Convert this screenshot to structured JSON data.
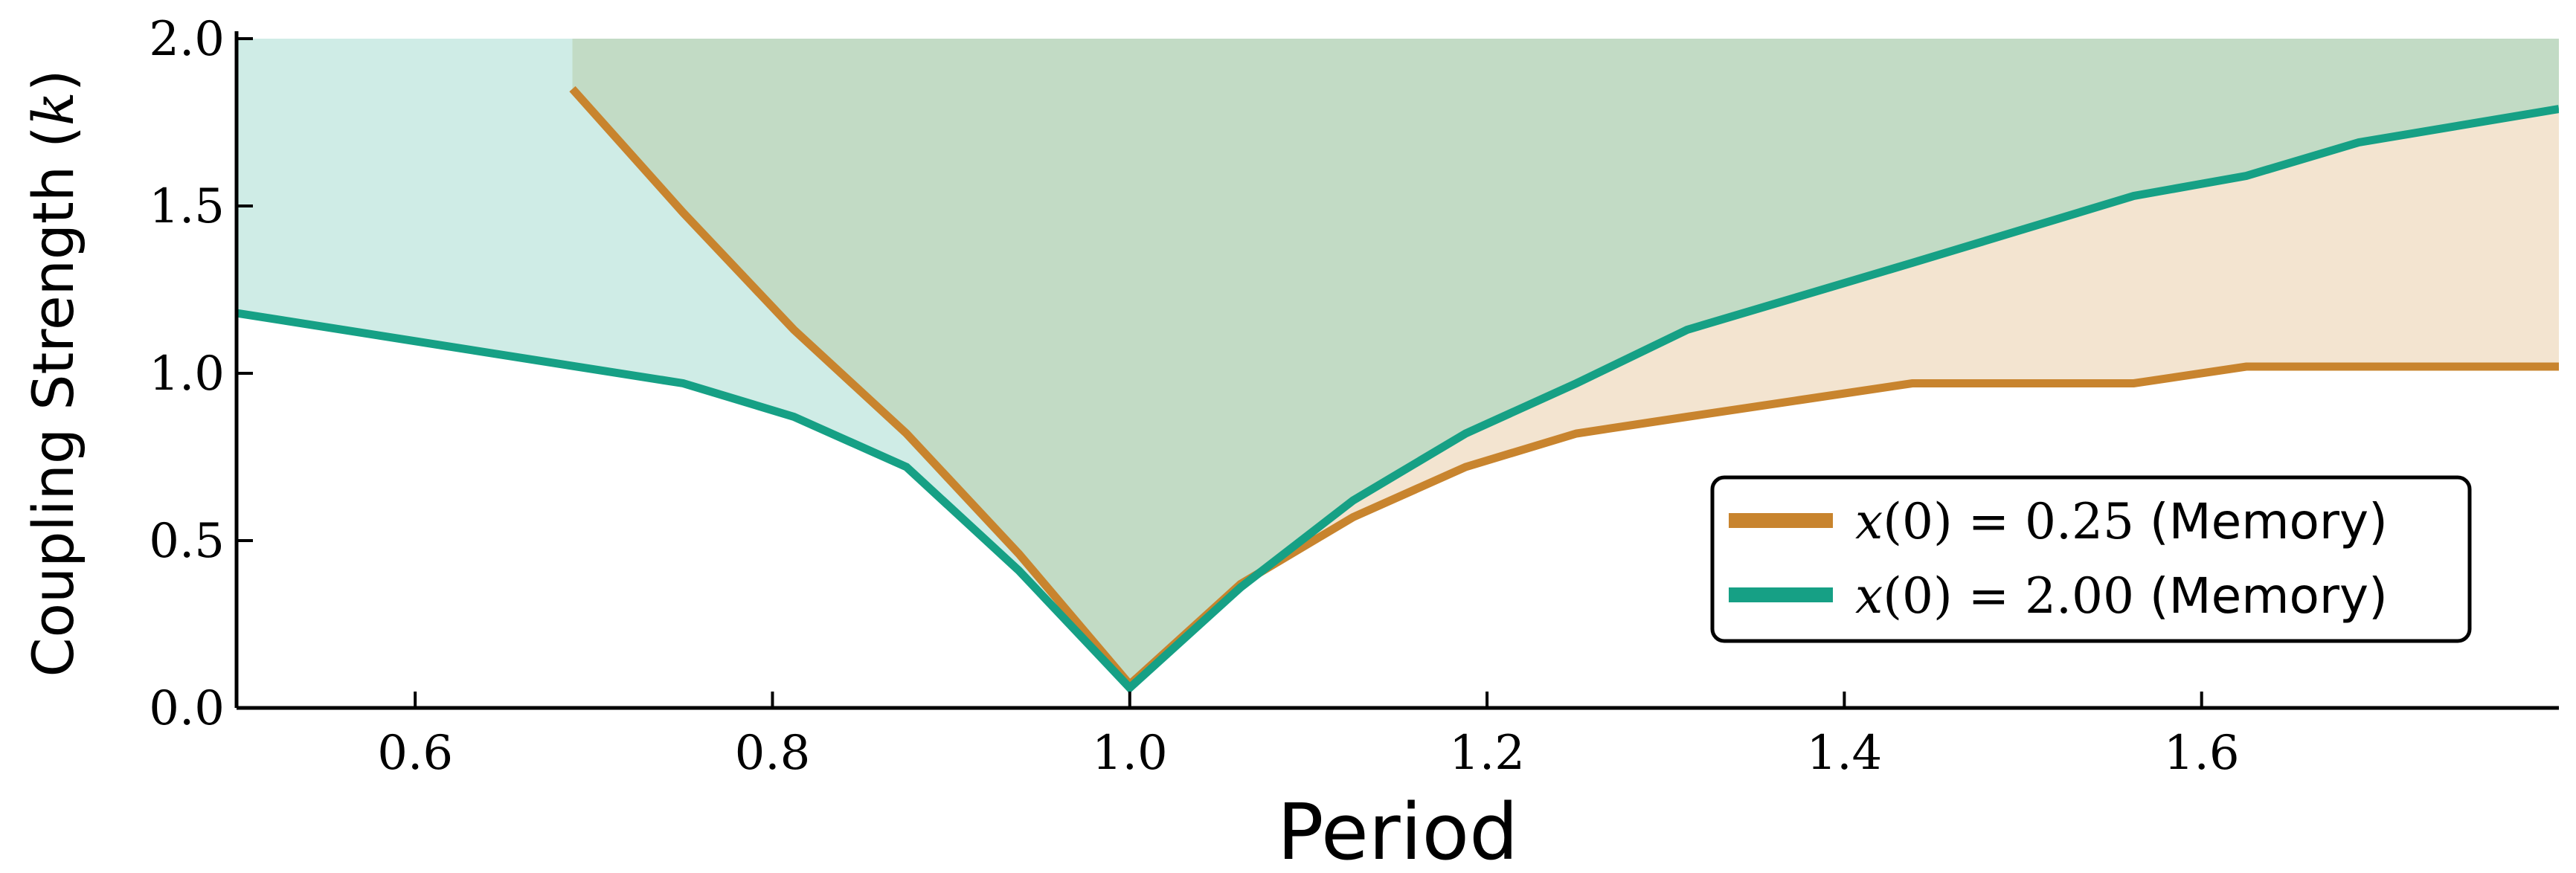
{
  "chart_data": {
    "type": "line",
    "title": "",
    "xlabel": "Period",
    "ylabel": "Coupling Strength (k)",
    "xlim": [
      0.5,
      1.8
    ],
    "ylim": [
      0.0,
      2.0
    ],
    "xticks": [
      0.6,
      0.8,
      1.0,
      1.2,
      1.4,
      1.6
    ],
    "xtick_labels": [
      "0.6",
      "0.8",
      "1.0",
      "1.2",
      "1.4",
      "1.6"
    ],
    "yticks": [
      0.0,
      0.5,
      1.0,
      1.5,
      2.0
    ],
    "ytick_labels": [
      "0.0",
      "0.5",
      "1.0",
      "1.5",
      "2.0"
    ],
    "grid": false,
    "legend_position": "lower-right",
    "series": [
      {
        "name": "x(0) = 0.25 (Memory)",
        "legend_math": "x(0) = 0.25",
        "legend_suffix": "(Memory)",
        "color": "#c8842e",
        "fill_color": "#f3e4d0",
        "fill_to": "top",
        "x": [
          0.688,
          0.75,
          0.812,
          0.875,
          0.938,
          1.0,
          1.062,
          1.125,
          1.188,
          1.25,
          1.312,
          1.375,
          1.438,
          1.5,
          1.562,
          1.625,
          1.688,
          1.8
        ],
        "y": [
          1.85,
          1.48,
          1.13,
          0.82,
          0.46,
          0.07,
          0.37,
          0.57,
          0.72,
          0.82,
          0.87,
          0.92,
          0.97,
          0.97,
          0.97,
          1.02,
          1.02,
          1.02
        ]
      },
      {
        "name": "x(0) = 2.00 (Memory)",
        "legend_math": "x(0) = 2.00",
        "legend_suffix": "(Memory)",
        "color": "#16a085",
        "fill_color": "#cfece6",
        "fill_to": "top",
        "x": [
          0.5,
          0.75,
          0.812,
          0.875,
          0.938,
          1.0,
          1.062,
          1.125,
          1.188,
          1.25,
          1.312,
          1.375,
          1.438,
          1.5,
          1.562,
          1.625,
          1.688,
          1.8
        ],
        "y": [
          1.18,
          0.97,
          0.87,
          0.72,
          0.41,
          0.06,
          0.36,
          0.62,
          0.82,
          0.97,
          1.13,
          1.23,
          1.33,
          1.43,
          1.53,
          1.59,
          1.69,
          1.79
        ]
      }
    ],
    "overlap_fill_color": "#c2dbc5"
  }
}
